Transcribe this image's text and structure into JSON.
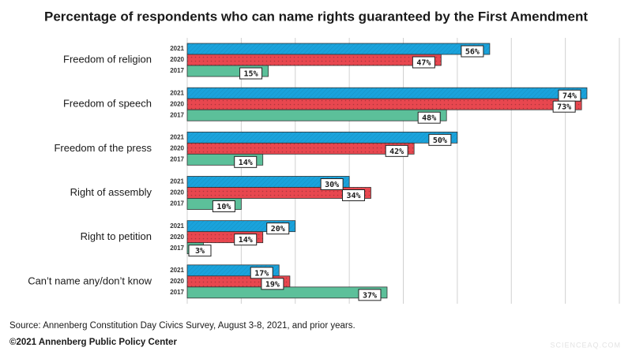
{
  "chart_data": {
    "type": "bar",
    "orientation": "horizontal",
    "title": "Percentage of respondents who can name rights guaranteed by the First Amendment",
    "categories": [
      "Freedom of religion",
      "Freedom of speech",
      "Freedom of the press",
      "Right of assembly",
      "Right to petition",
      "Can’t name any/don’t know"
    ],
    "series": [
      {
        "name": "2021",
        "color": "#1aa3dc",
        "values": [
          56,
          74,
          50,
          30,
          20,
          17
        ],
        "value_labels": [
          "56%",
          "74%",
          "50%",
          "30%",
          "20%",
          "17%"
        ]
      },
      {
        "name": "2020",
        "color": "#e8474f",
        "values": [
          47,
          73,
          42,
          34,
          14,
          19
        ],
        "value_labels": [
          "47%",
          "73%",
          "42%",
          "34%",
          "14%",
          "19%"
        ]
      },
      {
        "name": "2017",
        "color": "#5cc09a",
        "values": [
          15,
          48,
          14,
          10,
          3,
          37
        ],
        "value_labels": [
          "15%",
          "48%",
          "14%",
          "10%",
          "3%",
          "37%"
        ]
      }
    ],
    "xlim": [
      0,
      80
    ],
    "xticks": [
      0,
      10,
      20,
      30,
      40,
      50,
      60,
      70,
      80
    ],
    "grid": true,
    "source": "Source: Annenberg Constitution Day Civics Survey, August 3-8, 2021, and prior years.",
    "copyright": "©2021 Annenberg Public Policy Center",
    "watermark": "SCIENCEAQ.COM"
  }
}
